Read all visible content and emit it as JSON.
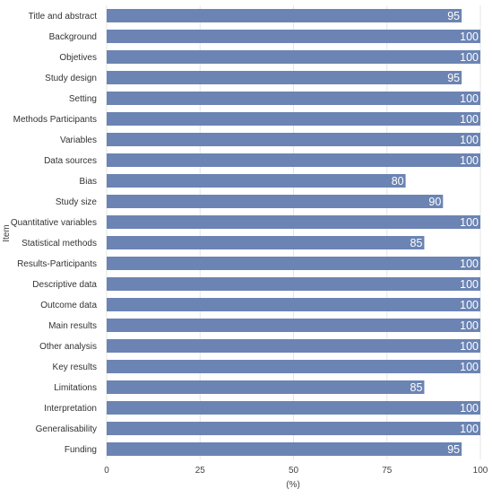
{
  "chart_data": {
    "type": "bar",
    "orientation": "horizontal",
    "title": "",
    "xlabel": "(%)",
    "ylabel": "Item",
    "xlim": [
      0,
      100
    ],
    "xticks": [
      0,
      25,
      50,
      75,
      100
    ],
    "grid": "vertical",
    "legend": "none",
    "bar_color": "#6b84b3",
    "label_color": "#ffffff",
    "categories": [
      "Title and abstract",
      "Background",
      "Objetives",
      "Study design",
      "Setting",
      "Methods Participants",
      "Variables",
      "Data sources",
      "Bias",
      "Study size",
      "Quantitative variables",
      "Statistical methods",
      "Results-Participants",
      "Descriptive data",
      "Outcome data",
      "Main results",
      "Other analysis",
      "Key results",
      "Limitations",
      "Interpretation",
      "Generalisability",
      "Funding"
    ],
    "values": [
      95,
      100,
      100,
      95,
      100,
      100,
      100,
      100,
      80,
      90,
      100,
      85,
      100,
      100,
      100,
      100,
      100,
      100,
      85,
      100,
      100,
      95
    ]
  }
}
